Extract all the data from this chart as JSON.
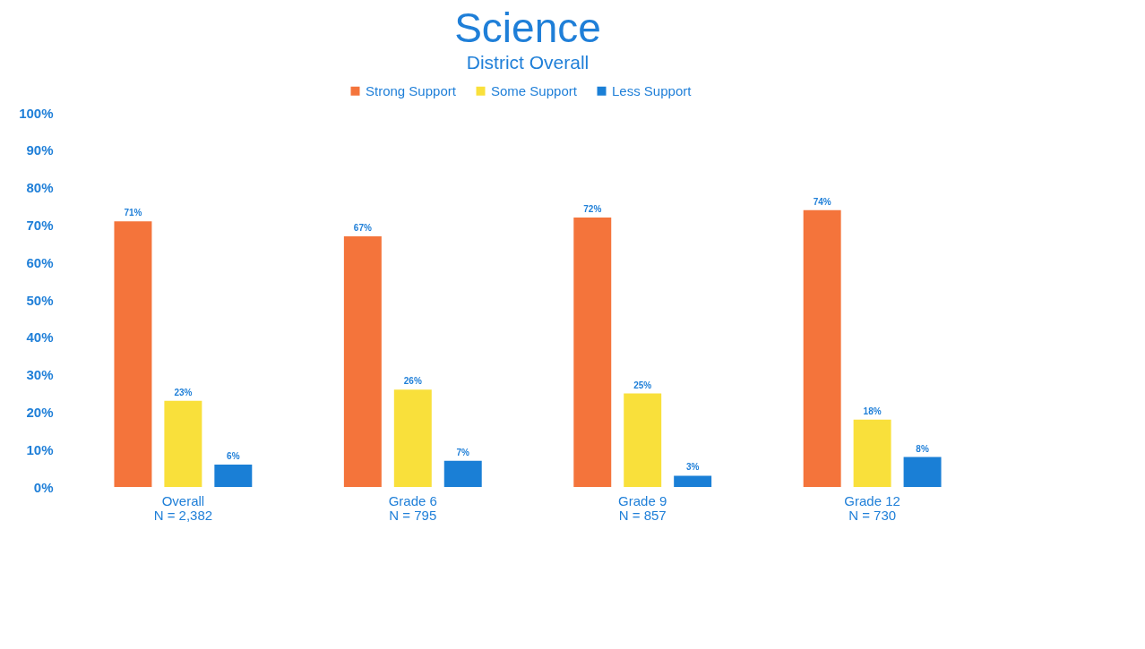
{
  "chart_data": {
    "type": "bar",
    "title": "Science",
    "subtitle": "District Overall",
    "categories": [
      "Overall",
      "Grade 6",
      "Grade 9",
      "Grade 12"
    ],
    "series": [
      {
        "name": "Strong Support",
        "color": "#f4743b",
        "values": [
          71,
          67,
          72,
          74
        ],
        "value_labels": [
          "71%",
          "67%",
          "72%",
          "74%"
        ]
      },
      {
        "name": "Some Support",
        "color": "#f9e03b",
        "values": [
          23,
          26,
          25,
          18
        ],
        "value_labels": [
          "23%",
          "26%",
          "25%",
          "18%"
        ]
      },
      {
        "name": "Less Support",
        "color": "#1a7fd6",
        "values": [
          6,
          7,
          3,
          8
        ],
        "value_labels": [
          "6%",
          "7%",
          "3%",
          "8%"
        ]
      }
    ],
    "ylim": [
      0,
      100
    ],
    "yticks": [
      {
        "value": 0,
        "label": "0%"
      },
      {
        "value": 10,
        "label": "10%"
      },
      {
        "value": 20,
        "label": "20%"
      },
      {
        "value": 30,
        "label": "30%"
      },
      {
        "value": 40,
        "label": "40%"
      },
      {
        "value": 50,
        "label": "50%"
      },
      {
        "value": 60,
        "label": "60%"
      },
      {
        "value": 70,
        "label": "70%"
      },
      {
        "value": 80,
        "label": "80%"
      },
      {
        "value": 90,
        "label": "90%"
      },
      {
        "value": 100,
        "label": "100%"
      }
    ],
    "annotations": [
      "N = 2,382",
      "N = 795",
      "N = 857",
      "N = 730"
    ],
    "grid": false,
    "legend": "top"
  }
}
